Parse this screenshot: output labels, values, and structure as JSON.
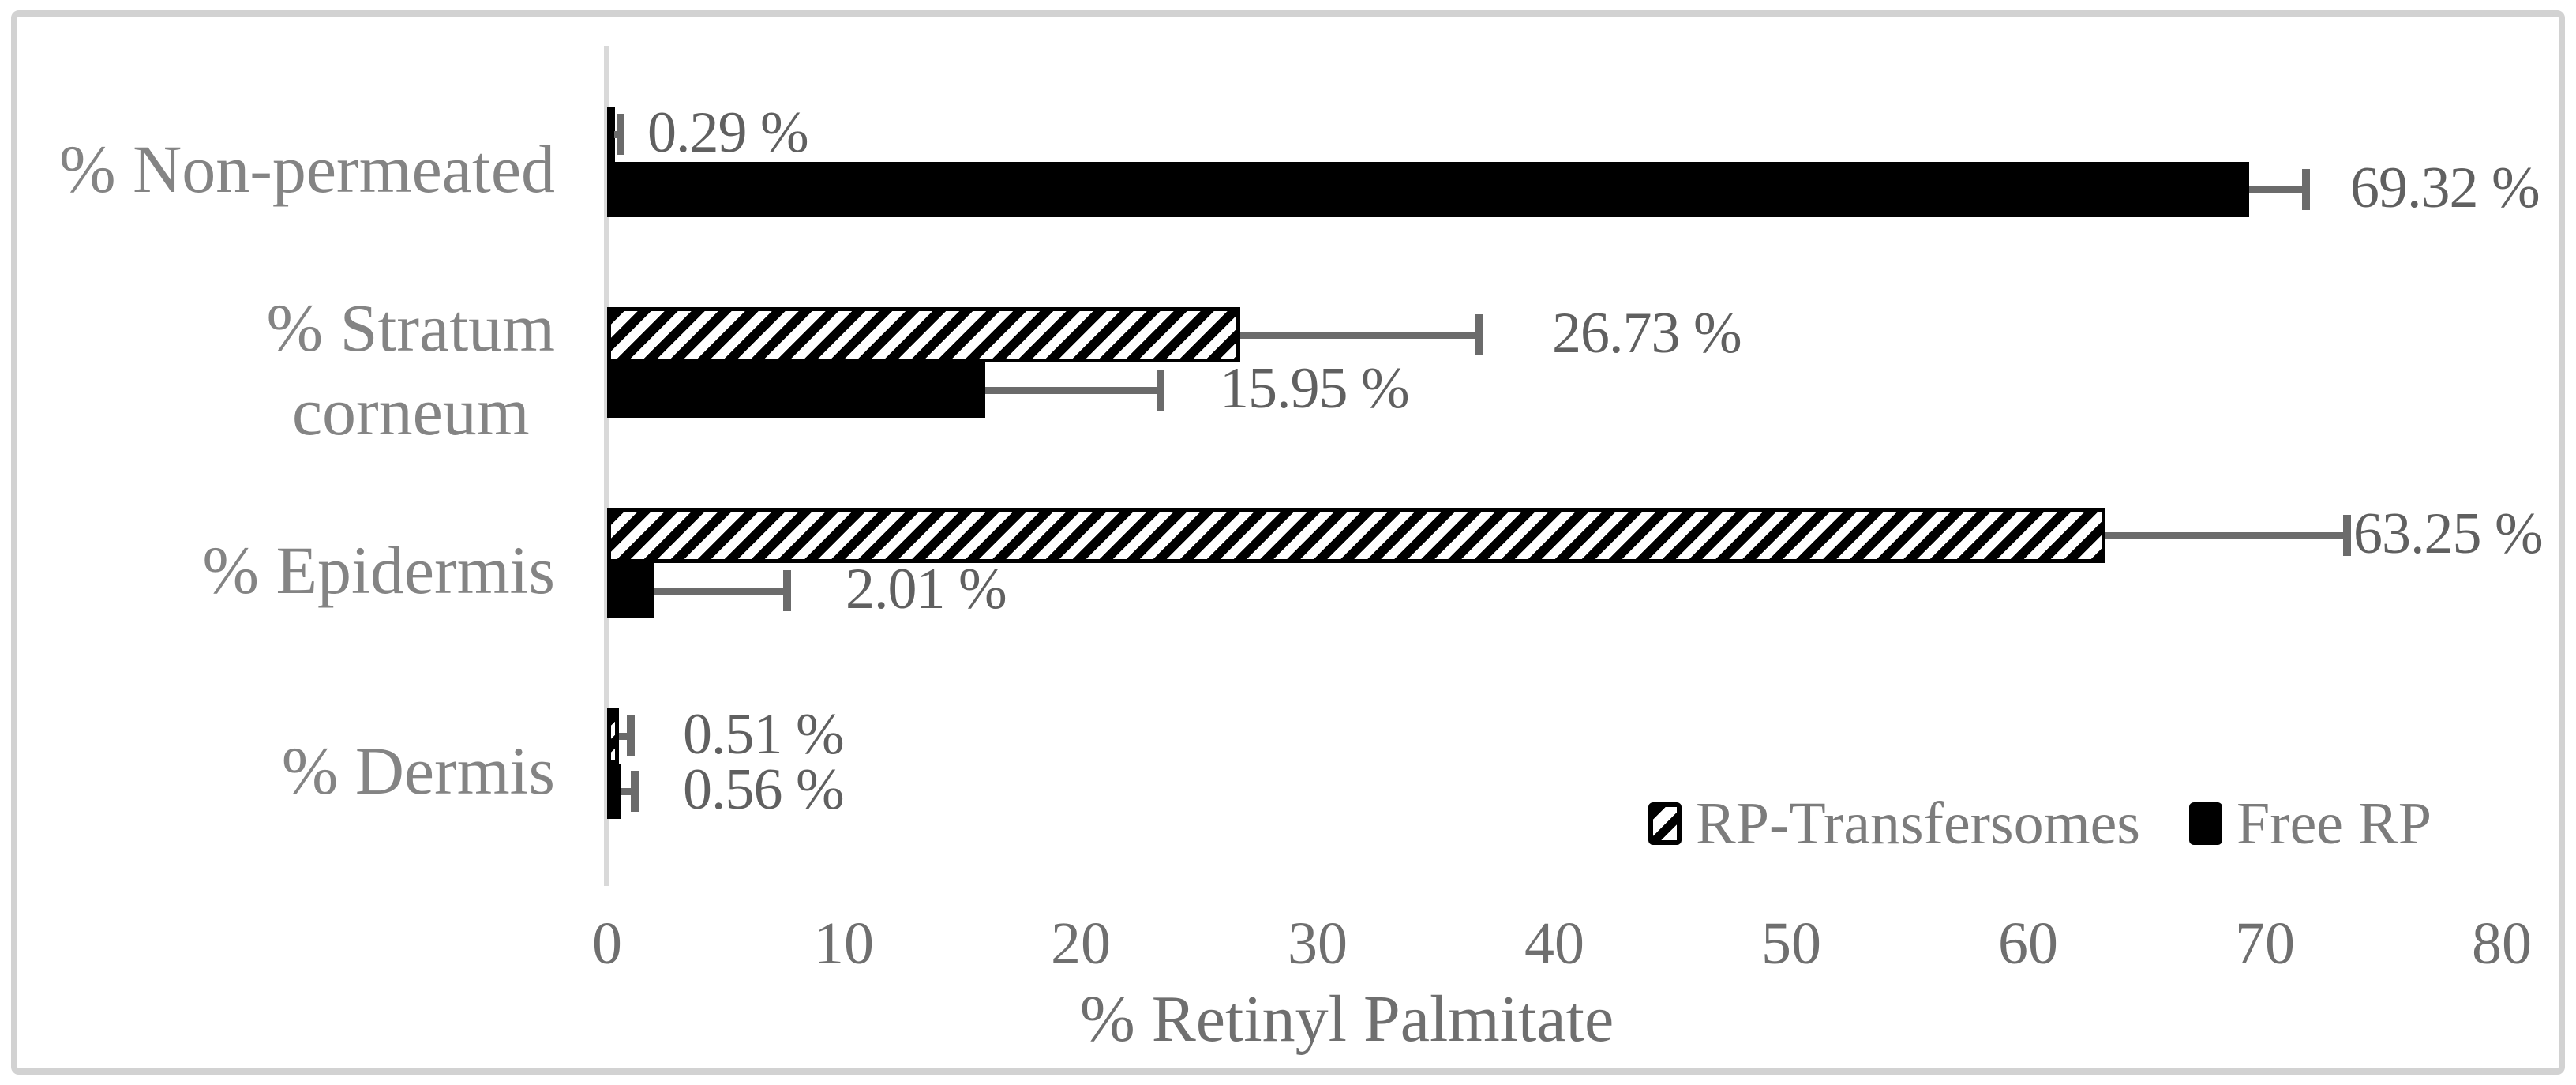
{
  "figure": {
    "axis_title": "% Retinyl Palmitate"
  },
  "legend": {
    "items": [
      {
        "label": "RP-Transfersomes",
        "swatch": "diagonal-hatch"
      },
      {
        "label": "Free RP",
        "swatch": "solid-black"
      }
    ]
  },
  "chart_data": {
    "type": "bar",
    "orientation": "horizontal",
    "title": "",
    "xlabel": "% Retinyl Palmitate",
    "ylabel": "",
    "xlim": [
      0,
      80
    ],
    "x_ticks": [
      0,
      10,
      20,
      30,
      40,
      50,
      60,
      70,
      80
    ],
    "grid": false,
    "legend_position": "bottom-right",
    "categories": [
      "% Non-permeated",
      "% Stratum corneum",
      "% Epidermis",
      "% Dermis"
    ],
    "category_display_lines": [
      [
        "% Non-permeated"
      ],
      [
        "% Stratum",
        "corneum"
      ],
      [
        "% Epidermis"
      ],
      [
        "% Dermis"
      ]
    ],
    "series": [
      {
        "name": "RP-Transfersomes",
        "style": "diagonal-hatch",
        "values": [
          0.29,
          26.73,
          63.25,
          0.51
        ],
        "error_plus": [
          0.27,
          10.1,
          10.2,
          0.5
        ],
        "data_labels": [
          "0.29 %",
          "26.73 %",
          "63.25 %",
          "0.51 %"
        ]
      },
      {
        "name": "Free RP",
        "style": "solid-black",
        "values": [
          69.32,
          15.95,
          2.01,
          0.56
        ],
        "error_plus": [
          2.4,
          7.4,
          5.6,
          0.6
        ],
        "data_labels": [
          "69.32 %",
          "15.95 %",
          "2.01 %",
          "0.56 %"
        ]
      }
    ],
    "colors": {
      "bar_fill": "#000000",
      "error_bar": "#6b6b6b",
      "axis_line": "#d9d9d9",
      "data_label_text": "#606060",
      "category_text": "#848484",
      "tick_text": "#6f6f6f",
      "frame_border": "#d2d2d2"
    }
  }
}
